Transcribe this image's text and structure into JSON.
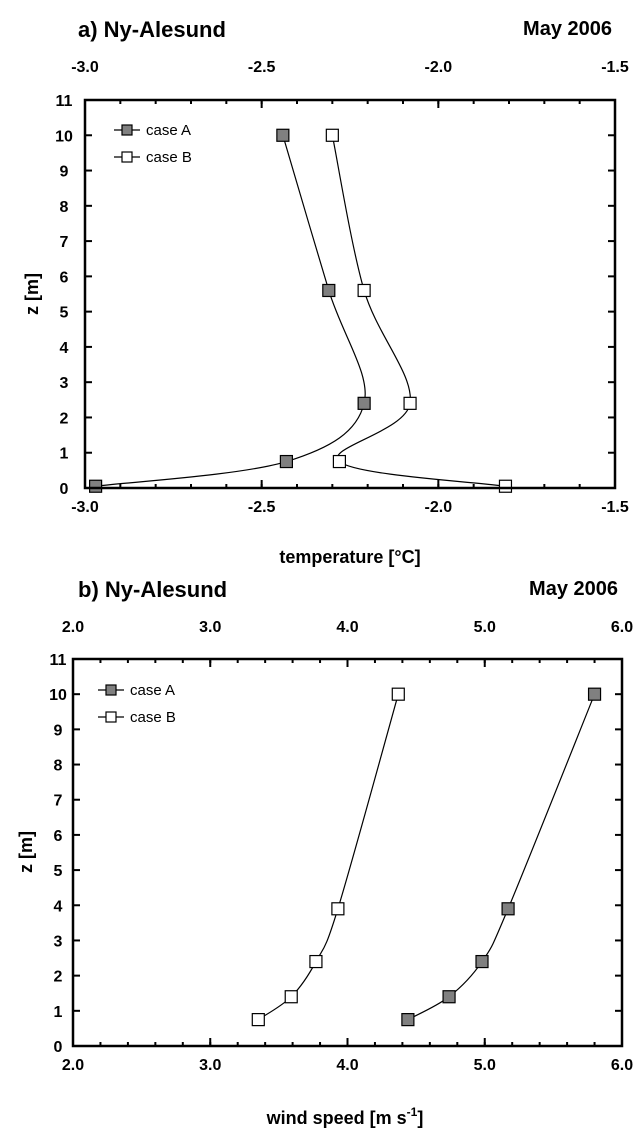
{
  "chart_data": [
    {
      "type": "line",
      "title": "a) Ny-Alesund",
      "date": "May 2006",
      "xlabel": "temperature [°C]",
      "ylabel": "z [m]",
      "xlim": [
        -3.0,
        -1.5
      ],
      "ylim": [
        0,
        11
      ],
      "xticks": [
        "-3.0",
        "-2.5",
        "-2.0",
        "-1.5"
      ],
      "yticks": [
        "0",
        "1",
        "2",
        "3",
        "4",
        "5",
        "6",
        "7",
        "8",
        "9",
        "10",
        "11"
      ],
      "legend_position": "top-left",
      "series": [
        {
          "name": "case A",
          "marker": "filled-square",
          "color": "#808080",
          "x": [
            -2.97,
            -2.43,
            -2.21,
            -2.31,
            -2.44
          ],
          "y": [
            0.05,
            0.75,
            2.4,
            5.6,
            10.0
          ]
        },
        {
          "name": "case B",
          "marker": "open-square",
          "color": "#ffffff",
          "x": [
            -1.81,
            -2.28,
            -2.08,
            -2.21,
            -2.3
          ],
          "y": [
            0.05,
            0.75,
            2.4,
            5.6,
            10.0
          ]
        }
      ]
    },
    {
      "type": "line",
      "title": "b) Ny-Alesund",
      "date": "May 2006",
      "xlabel": "wind speed [m s",
      "xlabel_sup": "-1",
      "xlabel_end": "]",
      "ylabel": "z [m]",
      "xlim": [
        2.0,
        6.0
      ],
      "ylim": [
        0,
        11
      ],
      "xticks": [
        "2.0",
        "3.0",
        "4.0",
        "5.0",
        "6.0"
      ],
      "yticks": [
        "0",
        "1",
        "2",
        "3",
        "4",
        "5",
        "6",
        "7",
        "8",
        "9",
        "10",
        "11"
      ],
      "legend_position": "top-left",
      "series": [
        {
          "name": "case A",
          "marker": "filled-square",
          "color": "#808080",
          "x": [
            4.44,
            4.74,
            4.98,
            5.17,
            5.8
          ],
          "y": [
            0.75,
            1.4,
            2.4,
            3.9,
            10.0
          ]
        },
        {
          "name": "case B",
          "marker": "open-square",
          "color": "#ffffff",
          "x": [
            3.35,
            3.59,
            3.77,
            3.93,
            4.37
          ],
          "y": [
            0.75,
            1.4,
            2.4,
            3.9,
            10.0
          ]
        }
      ]
    }
  ]
}
